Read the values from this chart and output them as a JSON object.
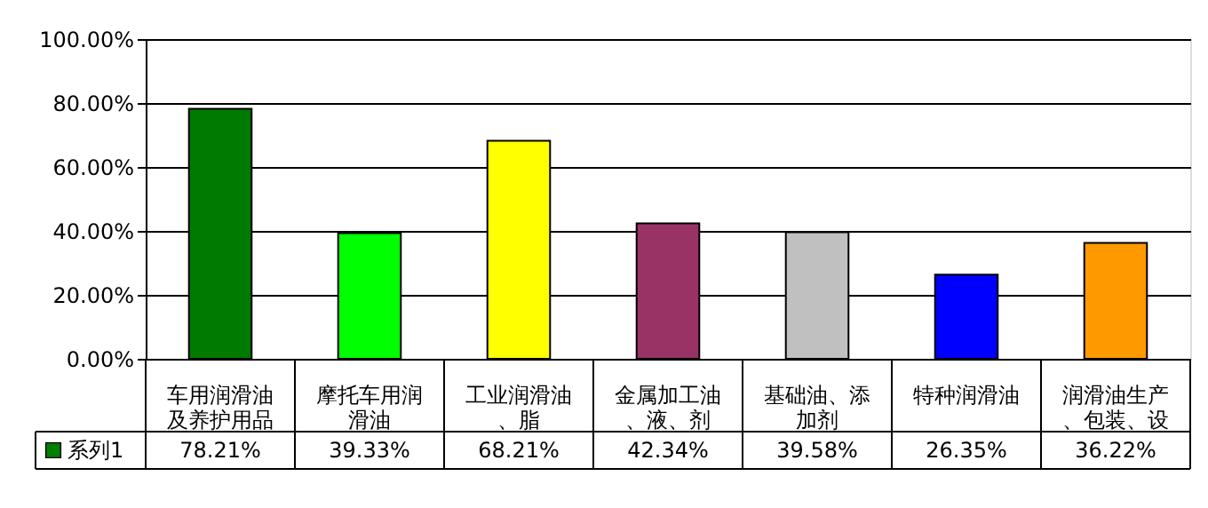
{
  "chart_data": {
    "type": "bar",
    "categories": [
      "车用润滑油及养护用品",
      "摩托车用润滑油",
      "工业润滑油、脂",
      "金属加工油、液、剂",
      "基础油、添加剂",
      "特种润滑油",
      "润滑油生产、包装、设"
    ],
    "series": [
      {
        "name": "系列1",
        "color": "#008000",
        "colors": [
          "#007a00",
          "#00ff00",
          "#ffff00",
          "#993366",
          "#c0c0c0",
          "#0000ff",
          "#ff9900"
        ],
        "values": [
          78.21,
          39.33,
          68.21,
          42.34,
          39.58,
          26.35,
          36.22
        ],
        "value_labels": [
          "78.21%",
          "39.33%",
          "68.21%",
          "42.34%",
          "39.58%",
          "26.35%",
          "36.22%"
        ]
      }
    ],
    "ylim": [
      0,
      100
    ],
    "yticks": [
      {
        "value": 0,
        "label": "0.00%"
      },
      {
        "value": 20,
        "label": "20.00%"
      },
      {
        "value": 40,
        "label": "40.00%"
      },
      {
        "value": 60,
        "label": "60.00%"
      },
      {
        "value": 80,
        "label": "80.00%"
      },
      {
        "value": 100,
        "label": "100.00%"
      }
    ],
    "grid": "y",
    "legend": "bottom"
  }
}
